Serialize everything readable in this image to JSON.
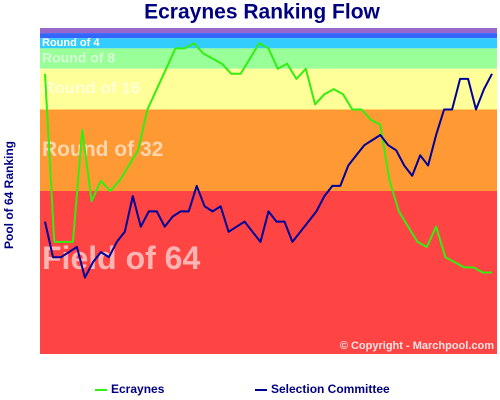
{
  "chart_data": {
    "type": "line",
    "title": "Ecraynes Ranking Flow",
    "y_label": "Pool of 64 Ranking",
    "copyright": "© Copyright - Marchpool.com",
    "ylim": [
      64,
      0
    ],
    "bands": [
      {
        "label": null,
        "from": 0,
        "to": 1,
        "color": "#9966cc"
      },
      {
        "label": null,
        "from": 1,
        "to": 2,
        "color": "#3366ff"
      },
      {
        "label": "Round of 4",
        "from": 2,
        "to": 4,
        "color": "#33ccff"
      },
      {
        "label": "Round of 8",
        "from": 4,
        "to": 8,
        "color": "#99ff99"
      },
      {
        "label": "Round of 16",
        "from": 8,
        "to": 16,
        "color": "#ffff99"
      },
      {
        "label": "Round of 32",
        "from": 16,
        "to": 32,
        "color": "#ff9933"
      },
      {
        "label": "Field of 64",
        "from": 32,
        "to": 64,
        "color": "#ff4444"
      }
    ],
    "series": [
      {
        "name": "Ecraynes",
        "color": "#33ee11",
        "values": [
          9,
          42,
          42,
          42,
          20,
          34,
          30,
          32,
          30,
          27,
          24,
          16,
          12,
          8,
          4,
          4,
          3,
          5,
          6,
          7,
          9,
          9,
          6,
          3,
          4,
          8,
          7,
          10,
          8,
          15,
          13,
          12,
          13,
          16,
          16,
          18,
          19,
          30,
          36,
          39,
          42,
          43,
          39,
          45,
          46,
          47,
          47,
          48,
          48
        ]
      },
      {
        "name": "Selection Committee",
        "color": "#000099",
        "values": [
          38,
          45,
          45,
          44,
          43,
          49,
          46,
          44,
          45,
          42,
          40,
          33,
          39,
          36,
          36,
          39,
          37,
          36,
          36,
          31,
          35,
          36,
          35,
          40,
          39,
          38,
          40,
          42,
          36,
          38,
          38,
          42,
          40,
          38,
          36,
          33,
          31,
          31,
          27,
          25,
          23,
          22,
          21,
          23,
          24,
          27,
          29,
          25,
          27,
          21,
          16,
          16,
          10,
          10,
          16,
          12,
          9
        ]
      }
    ]
  }
}
